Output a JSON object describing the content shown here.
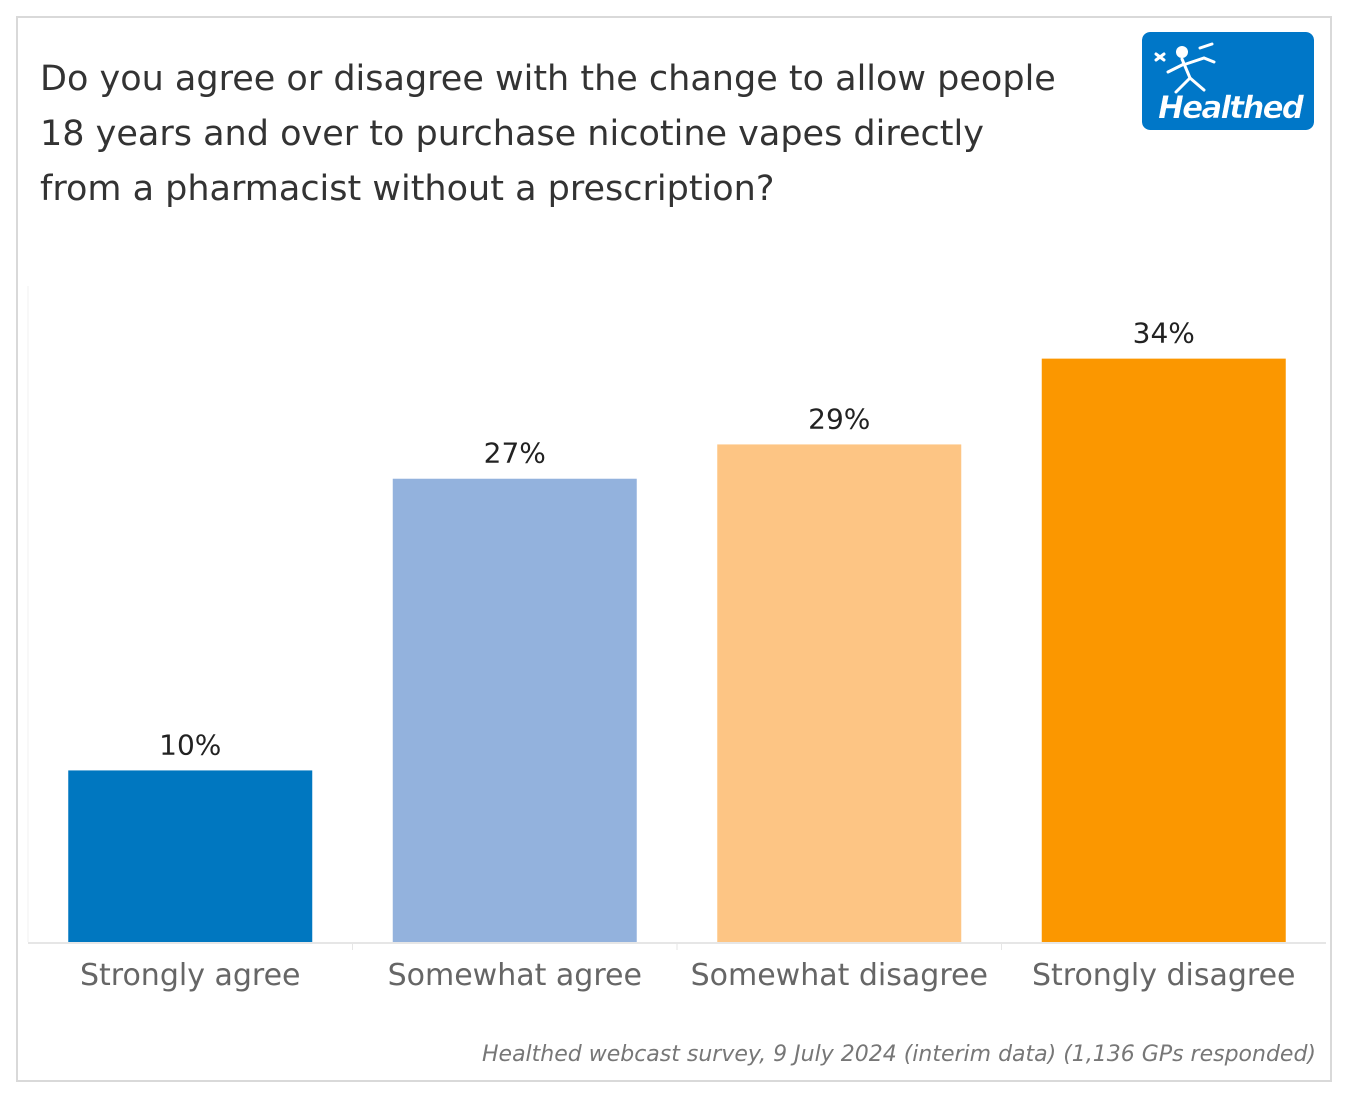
{
  "title": "Do you agree or disagree with the change to allow people 18 years and over to purchase nicotine vapes directly from a pharmacist without a prescription?",
  "logo": {
    "text": "Healthed",
    "color": "#0077c8"
  },
  "footnote": "Healthed webcast survey, 9 July 2024 (interim data) (1,136 GPs responded)",
  "chart_data": {
    "type": "bar",
    "title": "Do you agree or disagree with the change to allow people 18 years and over to purchase nicotine vapes directly from a pharmacist without a prescription?",
    "categories": [
      "Strongly agree",
      "Somewhat agree",
      "Somewhat disagree",
      "Strongly disagree"
    ],
    "values": [
      10,
      27,
      29,
      34
    ],
    "value_labels": [
      "10%",
      "27%",
      "29%",
      "34%"
    ],
    "colors": [
      "#0077c0",
      "#93b2dd",
      "#fdc584",
      "#fb9700"
    ],
    "xlabel": "",
    "ylabel": "",
    "ylim": [
      0,
      38
    ],
    "grid": false,
    "legend": "none"
  }
}
